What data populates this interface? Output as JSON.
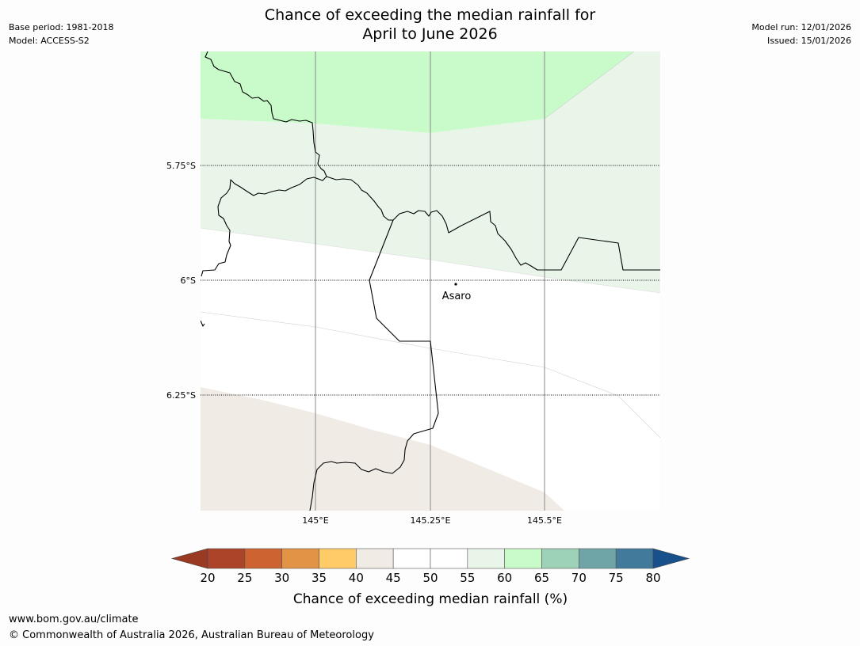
{
  "header": {
    "base_period": "Base period: 1981-2018",
    "model": "Model: ACCESS-S2",
    "model_run": "Model run: 12/01/2026",
    "issued": "Issued: 15/01/2026",
    "title_line1": "Chance of exceeding the median rainfall for",
    "title_line2": "April to June 2026"
  },
  "map": {
    "lat_labels": [
      "5.75°S",
      "6°S",
      "6.25°S"
    ],
    "lon_labels": [
      "145°E",
      "145.25°E",
      "145.5°E"
    ],
    "places": [
      {
        "name": "Asaro"
      }
    ],
    "colors": {
      "band_60_65": "#c9fbca",
      "band_55_60": "#e9f5e9",
      "band_50_55": "#ffffff",
      "band_40_45": "#f0ebe5",
      "border": "#000000",
      "meridian": "#888888"
    }
  },
  "colorbar": {
    "ticks": [
      "20",
      "25",
      "30",
      "35",
      "40",
      "45",
      "50",
      "55",
      "60",
      "65",
      "70",
      "75",
      "80"
    ],
    "colors": [
      "#ab4428",
      "#cd6331",
      "#e39346",
      "#fecb66",
      "#f0ebe5",
      "#ffffff",
      "#ffffff",
      "#e9f5e9",
      "#c9fbca",
      "#9dd1b8",
      "#6fa5a7",
      "#417a9a"
    ],
    "under_color": "#9b3a22",
    "over_color": "#17508a",
    "label": "Chance of exceeding median rainfall (%)"
  },
  "footer": {
    "url": "www.bom.gov.au/climate",
    "copyright": "© Commonwealth of Australia 2026, Australian Bureau of Meteorology"
  }
}
